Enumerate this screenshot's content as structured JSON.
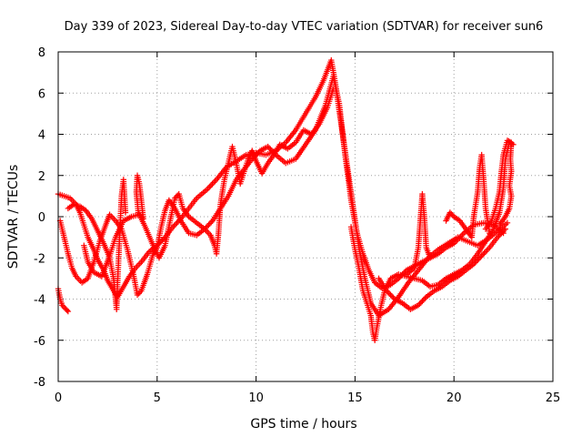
{
  "chart_data": {
    "type": "scatter",
    "title": "Day 339 of 2023, Sidereal Day-to-day VTEC variation (SDTVAR) for receiver sun6",
    "xlabel": "GPS time / hours",
    "ylabel": "SDTVAR / TECUs",
    "xlim": [
      0,
      25
    ],
    "ylim": [
      -8,
      8
    ],
    "xticks": [
      "0",
      "5",
      "10",
      "15",
      "20",
      "25"
    ],
    "yticks": [
      "-8",
      "-6",
      "-4",
      "-2",
      "0",
      "2",
      "4",
      "6",
      "8"
    ],
    "grid": true,
    "marker": "plus",
    "color": "#ff0000",
    "series": [
      {
        "points": [
          [
            0.0,
            1.1
          ],
          [
            0.3,
            1.0
          ],
          [
            0.6,
            0.9
          ],
          [
            0.9,
            0.6
          ],
          [
            1.1,
            0.2
          ],
          [
            1.3,
            -0.4
          ],
          [
            1.5,
            -1.0
          ],
          [
            1.8,
            -1.6
          ],
          [
            2.0,
            -2.1
          ],
          [
            2.3,
            -2.6
          ],
          [
            2.5,
            -3.1
          ],
          [
            2.8,
            -3.6
          ],
          [
            3.0,
            -3.9
          ],
          [
            3.3,
            -3.4
          ],
          [
            3.6,
            -2.9
          ],
          [
            3.9,
            -2.5
          ],
          [
            4.2,
            -2.2
          ],
          [
            4.6,
            -1.7
          ],
          [
            5.0,
            -1.4
          ],
          [
            5.4,
            -1.0
          ],
          [
            5.8,
            -0.5
          ],
          [
            6.2,
            -0.1
          ],
          [
            6.6,
            0.4
          ],
          [
            7.0,
            0.9
          ],
          [
            7.5,
            1.3
          ],
          [
            8.0,
            1.8
          ],
          [
            8.5,
            2.4
          ],
          [
            9.0,
            2.7
          ],
          [
            9.5,
            3.0
          ],
          [
            10.0,
            3.1
          ],
          [
            10.5,
            3.0
          ],
          [
            11.0,
            3.2
          ],
          [
            11.5,
            3.6
          ],
          [
            12.0,
            4.2
          ],
          [
            12.5,
            5.0
          ],
          [
            13.0,
            5.8
          ],
          [
            13.4,
            6.6
          ],
          [
            13.8,
            7.6
          ],
          [
            14.0,
            6.5
          ],
          [
            14.3,
            4.5
          ],
          [
            14.6,
            2.5
          ],
          [
            14.9,
            0.5
          ],
          [
            15.2,
            -1.5
          ],
          [
            15.5,
            -3.0
          ],
          [
            15.8,
            -4.2
          ],
          [
            16.2,
            -4.8
          ],
          [
            16.7,
            -4.5
          ],
          [
            17.2,
            -3.9
          ],
          [
            17.7,
            -3.2
          ],
          [
            18.2,
            -2.6
          ],
          [
            18.7,
            -2.0
          ],
          [
            19.2,
            -1.6
          ],
          [
            19.7,
            -1.3
          ],
          [
            20.2,
            -1.0
          ],
          [
            20.7,
            -1.2
          ],
          [
            21.2,
            -1.4
          ],
          [
            21.7,
            -1.1
          ],
          [
            22.2,
            -0.7
          ],
          [
            22.7,
            -0.3
          ]
        ]
      },
      {
        "points": [
          [
            0.1,
            -0.2
          ],
          [
            0.3,
            -1.0
          ],
          [
            0.5,
            -1.8
          ],
          [
            0.7,
            -2.5
          ],
          [
            0.9,
            -2.9
          ],
          [
            1.2,
            -3.2
          ],
          [
            1.5,
            -3.0
          ],
          [
            1.8,
            -2.2
          ],
          [
            2.1,
            -1.2
          ],
          [
            2.4,
            -0.4
          ],
          [
            2.6,
            0.1
          ],
          [
            2.9,
            -0.2
          ],
          [
            3.2,
            -0.6
          ],
          [
            3.5,
            -1.6
          ],
          [
            3.8,
            -2.8
          ],
          [
            4.0,
            -3.8
          ],
          [
            4.2,
            -3.6
          ],
          [
            4.5,
            -2.8
          ],
          [
            4.8,
            -1.8
          ],
          [
            5.0,
            -1.5
          ],
          [
            5.2,
            -0.5
          ],
          [
            5.4,
            0.3
          ],
          [
            5.6,
            0.8
          ],
          [
            5.9,
            0.4
          ],
          [
            6.2,
            -0.2
          ],
          [
            6.6,
            -0.8
          ],
          [
            7.0,
            -0.9
          ],
          [
            7.4,
            -0.6
          ],
          [
            7.8,
            -0.2
          ],
          [
            8.2,
            0.4
          ],
          [
            8.6,
            1.0
          ],
          [
            9.0,
            1.8
          ],
          [
            9.4,
            2.3
          ],
          [
            9.8,
            2.8
          ],
          [
            10.2,
            3.2
          ],
          [
            10.6,
            3.4
          ],
          [
            11.0,
            3.0
          ],
          [
            11.5,
            2.6
          ],
          [
            12.0,
            2.8
          ],
          [
            12.5,
            3.5
          ],
          [
            13.0,
            4.2
          ],
          [
            13.5,
            5.4
          ],
          [
            13.9,
            6.8
          ],
          [
            14.2,
            5.5
          ],
          [
            14.5,
            3.0
          ],
          [
            14.8,
            0.8
          ],
          [
            15.1,
            -0.8
          ],
          [
            15.4,
            -1.8
          ],
          [
            15.7,
            -2.6
          ],
          [
            16.0,
            -3.2
          ],
          [
            16.4,
            -3.5
          ],
          [
            16.8,
            -3.3
          ],
          [
            17.2,
            -3.0
          ],
          [
            17.6,
            -2.6
          ],
          [
            18.0,
            -2.4
          ],
          [
            18.4,
            -2.2
          ],
          [
            18.8,
            -2.0
          ],
          [
            19.2,
            -1.8
          ],
          [
            19.6,
            -1.5
          ],
          [
            20.0,
            -1.3
          ],
          [
            20.5,
            -0.8
          ],
          [
            21.0,
            -0.4
          ],
          [
            21.5,
            -0.3
          ],
          [
            22.0,
            -0.4
          ],
          [
            22.5,
            -0.8
          ]
        ]
      },
      {
        "points": [
          [
            0.0,
            -3.5
          ],
          [
            0.1,
            -4.0
          ],
          [
            0.2,
            -4.3
          ],
          [
            0.4,
            -4.5
          ],
          [
            0.5,
            -4.6
          ]
        ]
      },
      {
        "points": [
          [
            0.5,
            0.4
          ],
          [
            0.8,
            0.6
          ],
          [
            1.1,
            0.5
          ],
          [
            1.4,
            0.3
          ],
          [
            1.7,
            -0.1
          ],
          [
            2.0,
            -0.7
          ],
          [
            2.3,
            -1.3
          ],
          [
            2.6,
            -2.0
          ],
          [
            2.8,
            -3.0
          ],
          [
            2.9,
            -4.0
          ],
          [
            2.95,
            -4.5
          ],
          [
            3.0,
            -3.2
          ],
          [
            3.1,
            -1.0
          ],
          [
            3.2,
            1.0
          ],
          [
            3.3,
            1.8
          ],
          [
            3.35,
            1.0
          ],
          [
            3.4,
            0.2
          ]
        ]
      },
      {
        "points": [
          [
            1.3,
            -1.4
          ],
          [
            1.5,
            -2.2
          ],
          [
            1.8,
            -2.7
          ],
          [
            2.2,
            -2.9
          ],
          [
            2.6,
            -1.9
          ],
          [
            2.9,
            -1.0
          ],
          [
            3.3,
            -0.2
          ],
          [
            3.7,
            0.0
          ],
          [
            4.1,
            0.1
          ],
          [
            4.3,
            -0.1
          ],
          [
            4.2,
            0.8
          ],
          [
            4.1,
            1.6
          ],
          [
            4.0,
            2.0
          ],
          [
            3.95,
            1.2
          ],
          [
            4.05,
            0.2
          ],
          [
            4.4,
            -0.5
          ],
          [
            4.8,
            -1.4
          ],
          [
            5.1,
            -2.0
          ],
          [
            5.4,
            -1.4
          ],
          [
            5.7,
            0.0
          ],
          [
            5.9,
            0.9
          ],
          [
            6.1,
            1.1
          ],
          [
            6.3,
            0.4
          ],
          [
            6.6,
            0.0
          ],
          [
            7.0,
            -0.3
          ],
          [
            7.4,
            -0.6
          ],
          [
            7.7,
            -0.9
          ],
          [
            7.9,
            -1.4
          ],
          [
            8.0,
            -1.8
          ],
          [
            8.1,
            -0.8
          ],
          [
            8.2,
            0.6
          ],
          [
            8.4,
            1.8
          ],
          [
            8.6,
            2.6
          ],
          [
            8.8,
            3.4
          ],
          [
            9.0,
            2.6
          ],
          [
            9.2,
            1.6
          ],
          [
            9.4,
            2.2
          ],
          [
            9.6,
            2.8
          ],
          [
            9.8,
            3.2
          ],
          [
            10.0,
            2.7
          ],
          [
            10.3,
            2.1
          ],
          [
            10.6,
            2.6
          ],
          [
            10.9,
            3.0
          ],
          [
            11.2,
            3.5
          ],
          [
            11.6,
            3.3
          ],
          [
            12.0,
            3.6
          ],
          [
            12.4,
            4.2
          ],
          [
            12.8,
            4.0
          ],
          [
            13.2,
            4.5
          ],
          [
            13.6,
            5.3
          ],
          [
            13.9,
            6.2
          ]
        ]
      },
      {
        "points": [
          [
            14.8,
            -0.5
          ],
          [
            15.0,
            -1.6
          ],
          [
            15.2,
            -2.5
          ],
          [
            15.4,
            -3.6
          ],
          [
            15.6,
            -4.2
          ],
          [
            15.8,
            -4.8
          ],
          [
            15.9,
            -5.6
          ],
          [
            16.0,
            -6.0
          ],
          [
            16.1,
            -5.4
          ],
          [
            16.3,
            -4.4
          ],
          [
            16.5,
            -3.6
          ],
          [
            16.8,
            -3.0
          ],
          [
            17.2,
            -2.8
          ],
          [
            17.6,
            -2.9
          ],
          [
            18.0,
            -3.0
          ],
          [
            18.4,
            -3.1
          ],
          [
            18.8,
            -3.4
          ],
          [
            19.2,
            -3.3
          ],
          [
            19.6,
            -3.0
          ],
          [
            20.0,
            -2.8
          ],
          [
            20.4,
            -2.6
          ],
          [
            20.8,
            -2.3
          ],
          [
            21.2,
            -1.8
          ],
          [
            21.6,
            -1.2
          ],
          [
            22.0,
            -0.6
          ],
          [
            22.3,
            0.2
          ],
          [
            22.5,
            1.4
          ],
          [
            22.6,
            2.8
          ],
          [
            22.8,
            3.6
          ],
          [
            23.0,
            3.5
          ]
        ]
      },
      {
        "points": [
          [
            16.2,
            -3.0
          ],
          [
            16.6,
            -3.6
          ],
          [
            17.0,
            -4.0
          ],
          [
            17.4,
            -4.2
          ],
          [
            17.8,
            -4.5
          ],
          [
            18.2,
            -4.3
          ],
          [
            18.6,
            -3.9
          ],
          [
            19.0,
            -3.6
          ],
          [
            19.4,
            -3.4
          ],
          [
            19.8,
            -3.1
          ],
          [
            20.2,
            -2.9
          ],
          [
            20.6,
            -2.6
          ],
          [
            21.0,
            -2.3
          ],
          [
            21.4,
            -1.9
          ],
          [
            21.8,
            -1.5
          ],
          [
            22.2,
            -1.0
          ],
          [
            22.6,
            -0.6
          ]
        ]
      },
      {
        "points": [
          [
            17.6,
            -2.8
          ],
          [
            18.0,
            -2.5
          ],
          [
            18.2,
            -1.5
          ],
          [
            18.3,
            -0.2
          ],
          [
            18.4,
            1.1
          ],
          [
            18.5,
            0.0
          ],
          [
            18.6,
            -1.5
          ],
          [
            18.8,
            -2.0
          ]
        ]
      },
      {
        "points": [
          [
            19.6,
            -0.2
          ],
          [
            19.8,
            0.2
          ],
          [
            20.0,
            0.0
          ],
          [
            20.3,
            -0.2
          ],
          [
            20.6,
            -0.6
          ],
          [
            20.9,
            -1.0
          ],
          [
            21.0,
            0.0
          ],
          [
            21.2,
            1.2
          ],
          [
            21.3,
            2.4
          ],
          [
            21.4,
            3.0
          ],
          [
            21.5,
            1.8
          ],
          [
            21.6,
            0.4
          ],
          [
            21.8,
            -0.8
          ]
        ]
      },
      {
        "points": [
          [
            21.6,
            -0.6
          ],
          [
            21.9,
            -0.2
          ],
          [
            22.1,
            0.4
          ],
          [
            22.3,
            1.2
          ],
          [
            22.4,
            2.2
          ],
          [
            22.5,
            3.0
          ],
          [
            22.7,
            3.7
          ],
          [
            22.9,
            3.6
          ],
          [
            22.85,
            2.8
          ],
          [
            22.9,
            2.2
          ],
          [
            22.8,
            1.5
          ],
          [
            22.9,
            1.0
          ],
          [
            22.8,
            0.4
          ],
          [
            22.6,
            0.0
          ],
          [
            22.3,
            -0.4
          ]
        ]
      }
    ]
  }
}
